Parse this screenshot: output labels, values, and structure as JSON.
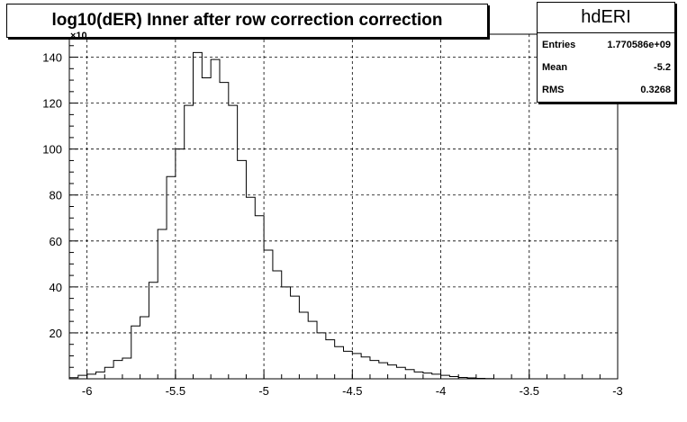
{
  "title": "log10(dER) Inner after row correction  correction",
  "stats": {
    "name": "hdERI",
    "rows": [
      {
        "label": "Entries",
        "value": "1.770586e+09"
      },
      {
        "label": "Mean",
        "value": "-5.2"
      },
      {
        "label": "RMS",
        "value": "0.3268"
      }
    ]
  },
  "y_exponent_label": "×10",
  "chart_data": {
    "type": "histogram",
    "xlim": [
      -6.1,
      -3.0
    ],
    "ylim": [
      0,
      150
    ],
    "grid": true,
    "x_ticks": [
      -6,
      -5.5,
      -5,
      -4.5,
      -4,
      -3.5,
      -3
    ],
    "x_tick_labels": [
      "-6",
      "-5.5",
      "-5",
      "-4.5",
      "-4",
      "-3.5",
      "-3"
    ],
    "y_ticks": [
      20,
      40,
      60,
      80,
      100,
      120,
      140
    ],
    "y_tick_labels": [
      "20",
      "40",
      "60",
      "80",
      "100",
      "120",
      "140"
    ],
    "bin_start": -6.1,
    "bin_width": 0.05,
    "values": [
      0.5,
      1.5,
      2,
      3,
      5,
      8,
      9,
      23,
      27,
      42,
      65,
      88,
      100,
      119,
      142,
      131,
      139,
      129,
      119,
      95,
      79,
      71,
      56,
      47,
      40,
      36,
      29,
      25,
      20,
      17,
      14,
      12,
      11,
      9.5,
      8,
      7,
      6,
      5,
      4,
      3,
      2.5,
      2,
      1.5,
      1,
      0.6,
      0.4,
      0.2,
      0.1
    ]
  }
}
